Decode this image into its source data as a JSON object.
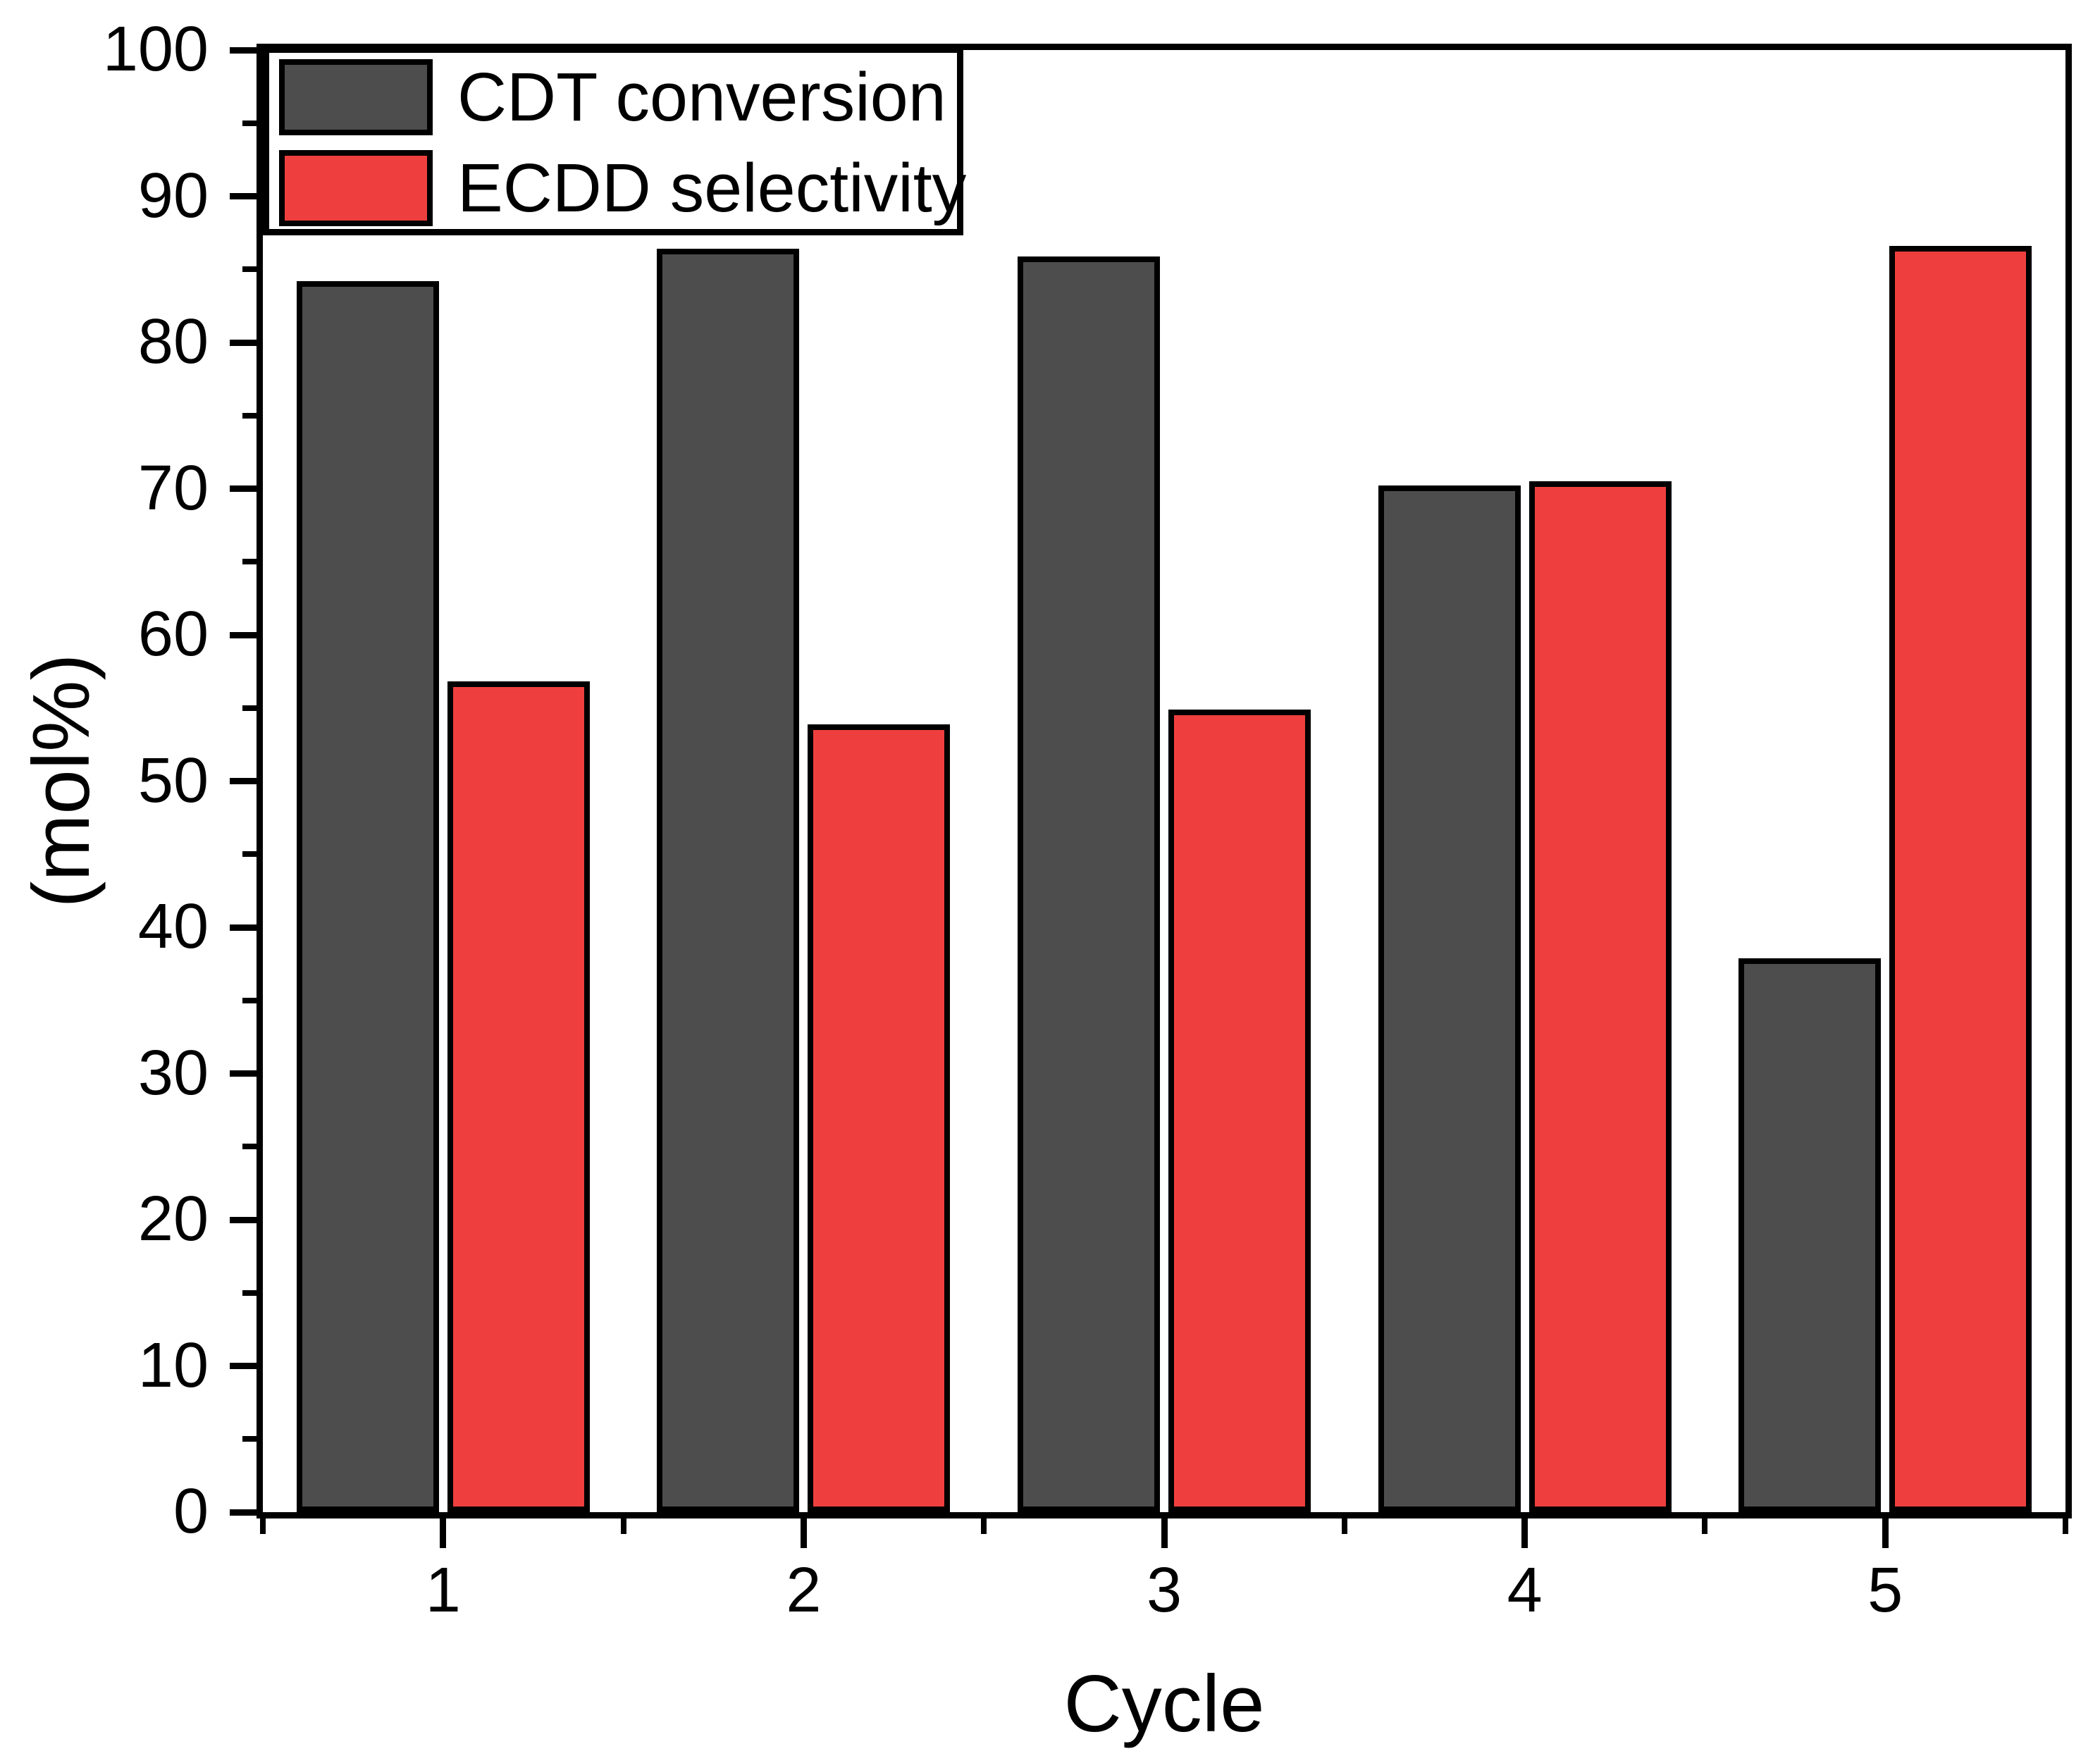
{
  "chart_data": {
    "type": "bar",
    "title": "",
    "xlabel": "Cycle",
    "ylabel": "(mol%)",
    "categories": [
      "1",
      "2",
      "3",
      "4",
      "5"
    ],
    "series": [
      {
        "name": "CDT conversion",
        "color": "#4d4d4d",
        "values": [
          84.2,
          86.4,
          85.9,
          70.2,
          37.9
        ]
      },
      {
        "name": "ECDD selectivity",
        "color": "#ee3f3e",
        "values": [
          56.8,
          53.9,
          54.9,
          70.5,
          86.6
        ]
      }
    ],
    "ylim": [
      0,
      100
    ],
    "y_major_ticks": [
      0,
      10,
      20,
      30,
      40,
      50,
      60,
      70,
      80,
      90,
      100
    ],
    "y_minor_step": 5,
    "grid": false,
    "legend_position": "top-left",
    "bar_border_color": "#000000",
    "axis_color": "#000000",
    "background_color": "#ffffff"
  }
}
